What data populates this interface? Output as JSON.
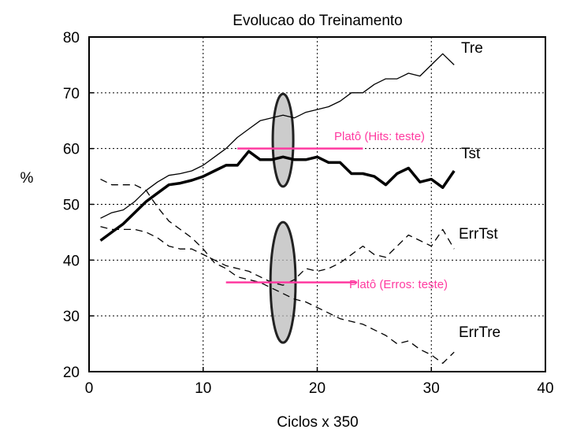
{
  "chart_data": {
    "type": "line",
    "title": "Evolucao do Treinamento",
    "xlabel": "Ciclos x 350",
    "ylabel": "%",
    "xlim": [
      0,
      40
    ],
    "ylim": [
      20,
      80
    ],
    "xticks": [
      0,
      10,
      20,
      30,
      40
    ],
    "yticks": [
      20,
      30,
      40,
      50,
      60,
      70,
      80
    ],
    "grid": true,
    "colors": {
      "series": "#000000",
      "plateau": "#ff3aa0",
      "ellipse_stroke": "#222222",
      "ellipse_fill": "#bbbbbb"
    },
    "series": [
      {
        "name": "Tre",
        "style": "thin",
        "x": [
          1,
          2,
          3,
          4,
          5,
          6,
          7,
          8,
          9,
          10,
          11,
          12,
          13,
          14,
          15,
          16,
          17,
          18,
          19,
          20,
          21,
          22,
          23,
          24,
          25,
          26,
          27,
          28,
          29,
          30,
          31,
          32
        ],
        "values": [
          47.5,
          48.5,
          49,
          50.5,
          52.5,
          54,
          55.2,
          55.5,
          56,
          57,
          58.5,
          60,
          62,
          63.5,
          65,
          65.5,
          66,
          65.5,
          66.5,
          67,
          67.5,
          68.5,
          70,
          70,
          71.5,
          72.5,
          72.5,
          73.5,
          73,
          75,
          77,
          75
        ]
      },
      {
        "name": "Tst",
        "style": "thick",
        "x": [
          1,
          2,
          3,
          4,
          5,
          6,
          7,
          8,
          9,
          10,
          11,
          12,
          13,
          14,
          15,
          16,
          17,
          18,
          19,
          20,
          21,
          22,
          23,
          24,
          25,
          26,
          27,
          28,
          29,
          30,
          31,
          32
        ],
        "values": [
          43.5,
          45,
          46.5,
          48.5,
          50.5,
          52,
          53.5,
          53.8,
          54.3,
          55,
          56,
          57,
          57,
          59.5,
          58,
          58,
          58.5,
          58,
          58,
          58.5,
          57.5,
          57.5,
          55.5,
          55.5,
          55,
          53.5,
          55.5,
          56.5,
          54,
          54.5,
          53,
          56
        ]
      },
      {
        "name": "ErrTst",
        "style": "dashed",
        "x": [
          1,
          2,
          3,
          4,
          5,
          6,
          7,
          8,
          9,
          10,
          11,
          12,
          13,
          14,
          15,
          16,
          17,
          18,
          19,
          20,
          21,
          22,
          23,
          24,
          25,
          26,
          27,
          28,
          29,
          30,
          31,
          32
        ],
        "values": [
          46,
          45.5,
          45.5,
          45.5,
          45,
          44,
          42.5,
          42,
          42,
          41,
          40,
          39,
          38.5,
          38,
          37,
          36,
          35.5,
          36.5,
          38.5,
          38,
          38.5,
          39.5,
          41,
          42.5,
          41,
          40.5,
          42.5,
          44.5,
          43.5,
          42.5,
          45.5,
          42
        ]
      },
      {
        "name": "ErrTre",
        "style": "dashed",
        "x": [
          1,
          2,
          3,
          4,
          5,
          6,
          7,
          8,
          9,
          10,
          11,
          12,
          13,
          14,
          15,
          16,
          17,
          18,
          19,
          20,
          21,
          22,
          23,
          24,
          25,
          26,
          27,
          28,
          29,
          30,
          31,
          32
        ],
        "values": [
          54.5,
          53.5,
          53.5,
          53.5,
          52.5,
          49.5,
          47,
          45.5,
          44,
          42,
          39.5,
          38.5,
          37,
          36.5,
          36,
          35,
          34,
          33,
          32.5,
          31.5,
          30.5,
          29.5,
          29,
          28.5,
          27.5,
          26.5,
          25,
          25.5,
          24,
          23,
          21.5,
          23.5
        ]
      }
    ],
    "annotations": [
      {
        "id": "plateau-hits",
        "text": "Platô (Hits: teste)",
        "y": 60,
        "x_start": 13,
        "x_end": 24
      },
      {
        "id": "plateau-errors",
        "text": "Platô (Erros: teste)",
        "y": 36,
        "x_start": 12,
        "x_end": 23.5
      }
    ],
    "highlight_ellipses": [
      {
        "id": "ellipse-hits",
        "cx": 17,
        "cy": 61.5,
        "rx": 0.9,
        "ry": 8.3
      },
      {
        "id": "ellipse-errors",
        "cx": 17,
        "cy": 36,
        "rx": 1.1,
        "ry": 10.8
      }
    ]
  }
}
